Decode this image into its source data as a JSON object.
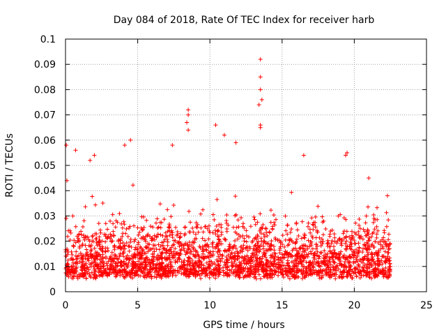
{
  "chart_data": {
    "type": "scatter",
    "title": "Day 084 of 2018, Rate Of TEC Index for receiver harb",
    "xlabel": "GPS time / hours",
    "ylabel": "ROTI / TECUs",
    "xlim": [
      0,
      25
    ],
    "ylim": [
      0,
      0.1
    ],
    "x_ticks": [
      "0",
      "5",
      "10",
      "15",
      "20",
      "25"
    ],
    "y_ticks": [
      "0",
      "0.01",
      "0.02",
      "0.03",
      "0.04",
      "0.05",
      "0.06",
      "0.07",
      "0.08",
      "0.09",
      "0.1"
    ],
    "grid": true,
    "marker": "+",
    "colors": {
      "points": "#ff0000",
      "grid": "#a0a0a0",
      "axes": "#000000"
    },
    "series": [
      {
        "data_range_x": [
          0,
          22.5
        ],
        "notable_points": [
          {
            "x": 0.05,
            "y": 0.058
          },
          {
            "x": 0.1,
            "y": 0.044
          },
          {
            "x": 0.7,
            "y": 0.056
          },
          {
            "x": 1.7,
            "y": 0.052
          },
          {
            "x": 2.0,
            "y": 0.054
          },
          {
            "x": 4.1,
            "y": 0.058
          },
          {
            "x": 4.5,
            "y": 0.06
          },
          {
            "x": 7.4,
            "y": 0.058
          },
          {
            "x": 8.5,
            "y": 0.072
          },
          {
            "x": 8.5,
            "y": 0.07
          },
          {
            "x": 8.4,
            "y": 0.067
          },
          {
            "x": 8.5,
            "y": 0.064
          },
          {
            "x": 10.4,
            "y": 0.066
          },
          {
            "x": 11.0,
            "y": 0.062
          },
          {
            "x": 11.8,
            "y": 0.059
          },
          {
            "x": 13.5,
            "y": 0.092
          },
          {
            "x": 13.5,
            "y": 0.085
          },
          {
            "x": 13.5,
            "y": 0.08
          },
          {
            "x": 13.6,
            "y": 0.076
          },
          {
            "x": 13.4,
            "y": 0.074
          },
          {
            "x": 13.5,
            "y": 0.066
          },
          {
            "x": 13.5,
            "y": 0.065
          },
          {
            "x": 16.5,
            "y": 0.054
          },
          {
            "x": 19.5,
            "y": 0.055
          },
          {
            "x": 19.4,
            "y": 0.054
          },
          {
            "x": 21.0,
            "y": 0.045
          },
          {
            "x": 22.3,
            "y": 0.038
          }
        ],
        "typical_band": [
          0.005,
          0.025
        ]
      }
    ]
  }
}
